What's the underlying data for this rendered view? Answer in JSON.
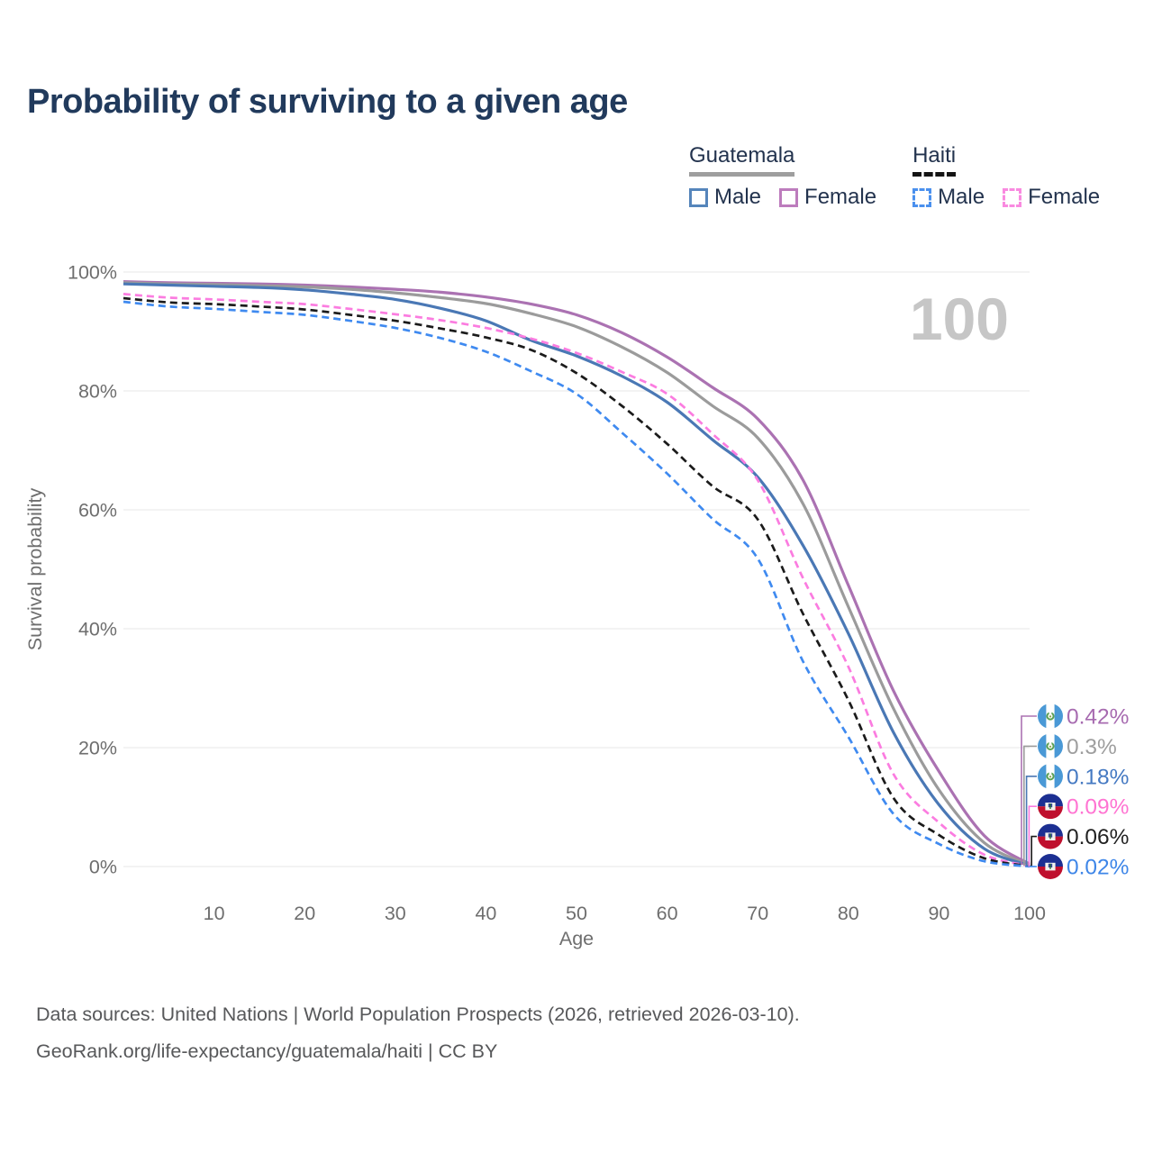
{
  "title": "Probability of surviving to a given age",
  "watermark": "100",
  "legend": {
    "groups": [
      {
        "label": "Guatemala",
        "underline_style": "solid",
        "underline_color": "#9e9e9e",
        "items": [
          {
            "label": "Male",
            "color": "#5585bb",
            "dashed": false
          },
          {
            "label": "Female",
            "color": "#bd7cbd",
            "dashed": false
          }
        ]
      },
      {
        "label": "Haiti",
        "underline_style": "dashed",
        "underline_color": "#141414",
        "items": [
          {
            "label": "Male",
            "color": "#4a90ee",
            "dashed": true
          },
          {
            "label": "Female",
            "color": "#f98ae0",
            "dashed": true
          }
        ]
      }
    ]
  },
  "chart_data": {
    "type": "line",
    "title": "Probability of surviving to a given age",
    "xlabel": "Age",
    "ylabel": "Survival probability",
    "xlim": [
      0,
      100
    ],
    "ylim": [
      0,
      100
    ],
    "x_ticks": [
      10,
      20,
      30,
      40,
      50,
      60,
      70,
      80,
      90,
      100
    ],
    "y_ticks": [
      0,
      20,
      40,
      60,
      80,
      100
    ],
    "y_tick_suffix": "%",
    "grid": "horizontal",
    "grid_color": "#ececec",
    "tick_color": "#6e6e6e",
    "watermark_color": "#c6c6c6",
    "x": [
      0,
      5,
      10,
      15,
      20,
      25,
      30,
      35,
      40,
      45,
      50,
      55,
      60,
      65,
      70,
      75,
      80,
      85,
      90,
      95,
      100
    ],
    "series": [
      {
        "name": "Guatemala Female",
        "country": "guatemala",
        "sex": "female",
        "color": "#ab72b2",
        "dashed": false,
        "end_label": "0.42%",
        "label_color": "#a76bb0",
        "values": [
          98.4,
          98.2,
          98.1,
          98.0,
          97.8,
          97.5,
          97.1,
          96.6,
          95.8,
          94.6,
          92.8,
          89.8,
          85.7,
          80.6,
          75.3,
          65.0,
          47.3,
          29.5,
          16.0,
          5.2,
          0.42
        ]
      },
      {
        "name": "Guatemala All",
        "country": "guatemala",
        "sex": "all",
        "color": "#9b9b9b",
        "dashed": false,
        "end_label": "0.3%",
        "label_color": "#9e9e9e",
        "values": [
          98.2,
          98.0,
          97.9,
          97.7,
          97.5,
          97.1,
          96.5,
          95.7,
          94.7,
          93.0,
          90.8,
          87.4,
          83.1,
          77.5,
          72.1,
          61.0,
          43.7,
          26.5,
          12.9,
          4.0,
          0.3
        ]
      },
      {
        "name": "Guatemala Male",
        "country": "guatemala",
        "sex": "male",
        "color": "#4a78b5",
        "dashed": false,
        "end_label": "0.18%",
        "label_color": "#4579c2",
        "values": [
          98.0,
          97.8,
          97.6,
          97.4,
          97.0,
          96.3,
          95.4,
          93.9,
          91.8,
          88.5,
          85.9,
          82.5,
          78.1,
          71.8,
          65.5,
          54.0,
          39.2,
          22.5,
          10.4,
          3.0,
          0.18
        ]
      },
      {
        "name": "Haiti Female",
        "country": "haiti",
        "sex": "female",
        "color": "#fb7ce0",
        "dashed": true,
        "end_label": "0.09%",
        "label_color": "#ff74d2",
        "values": [
          96.3,
          95.7,
          95.4,
          95.0,
          94.6,
          93.8,
          92.9,
          91.9,
          90.6,
          88.8,
          86.4,
          83.2,
          79.5,
          72.8,
          65.0,
          48.5,
          33.6,
          15.5,
          7.4,
          2.0,
          0.09
        ]
      },
      {
        "name": "Haiti All",
        "country": "haiti",
        "sex": "all",
        "color": "#1b1b1b",
        "dashed": true,
        "end_label": "0.06%",
        "label_color": "#222222",
        "values": [
          95.6,
          94.9,
          94.6,
          94.2,
          93.7,
          92.8,
          91.8,
          90.5,
          89.0,
          86.9,
          83.0,
          77.5,
          71.1,
          64.0,
          58.4,
          42.5,
          28.0,
          11.5,
          5.3,
          1.4,
          0.06
        ]
      },
      {
        "name": "Haiti Male",
        "country": "haiti",
        "sex": "male",
        "color": "#3f8af0",
        "dashed": true,
        "end_label": "0.02%",
        "label_color": "#3e86e8",
        "values": [
          95.0,
          94.2,
          93.8,
          93.3,
          92.8,
          91.8,
          90.6,
          88.9,
          86.6,
          83.3,
          79.5,
          73.0,
          66.1,
          58.5,
          51.8,
          34.5,
          21.8,
          8.8,
          3.8,
          0.9,
          0.02
        ]
      }
    ]
  },
  "footer": {
    "line1": "Data sources: United Nations | World Population Prospects (2026, retrieved 2026-03-10).",
    "line2": "GeoRank.org/life-expectancy/guatemala/haiti | CC BY"
  }
}
